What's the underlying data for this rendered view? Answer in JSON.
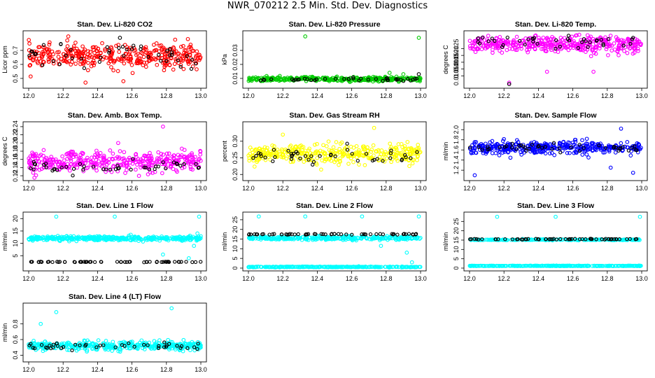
{
  "figure": {
    "title": "NWR_070212  2.5 Min. Std. Dev. Diagnostics"
  },
  "chart_data": [
    {
      "type": "scatter",
      "title": "Stan. Dev. Li-820 CO2",
      "ylabel": "Licor ppm",
      "xlim": [
        12.0,
        13.0
      ],
      "ylim": [
        0.45,
        0.82
      ],
      "xticks": [
        "12.0",
        "12.2",
        "12.4",
        "12.6",
        "12.8",
        "13.0"
      ],
      "yticks": [
        {
          "v": 0.5,
          "label": "0.5"
        },
        {
          "v": 0.6,
          "label": "0.6"
        },
        {
          "v": 0.7,
          "label": "0.7"
        }
      ],
      "series": [
        {
          "name": "main",
          "color": "#ff0000",
          "x_range": [
            12.0,
            13.0
          ],
          "center": 0.66,
          "spread": 0.07,
          "n": 380,
          "outliers": [
            [
              12.23,
              0.8
            ],
            [
              12.33,
              0.47
            ],
            [
              12.55,
              0.48
            ]
          ]
        },
        {
          "name": "reference",
          "color": "#000000",
          "x_range": [
            12.0,
            13.0
          ],
          "center": 0.66,
          "spread": 0.06,
          "n": 45,
          "outliers": [
            [
              12.53,
              0.79
            ]
          ]
        }
      ]
    },
    {
      "type": "scatter",
      "title": "Stan. Dev. Li-820 Pressure",
      "ylabel": "kPa",
      "xlim": [
        12.0,
        13.0
      ],
      "ylim": [
        0.005,
        0.042
      ],
      "xticks": [
        "12.0",
        "12.2",
        "12.4",
        "12.6",
        "12.8",
        "13.0"
      ],
      "yticks": [
        {
          "v": 0.01,
          "label": "0.01"
        },
        {
          "v": 0.02,
          "label": "0.02"
        },
        {
          "v": 0.03,
          "label": "0.03"
        }
      ],
      "series": [
        {
          "name": "main",
          "color": "#00cc00",
          "x_range": [
            12.0,
            13.0
          ],
          "center": 0.0095,
          "spread": 0.0012,
          "n": 380,
          "outliers": [
            [
              12.33,
              0.04
            ],
            [
              12.99,
              0.039
            ],
            [
              12.82,
              0.014
            ],
            [
              12.9,
              0.013
            ]
          ]
        },
        {
          "name": "reference",
          "color": "#000000",
          "x_range": [
            12.0,
            13.0
          ],
          "center": 0.0092,
          "spread": 0.001,
          "n": 40,
          "outliers": [
            [
              12.99,
              0.013
            ]
          ]
        }
      ]
    },
    {
      "type": "scatter",
      "title": "Stan. Dev. Li-820 Temp.",
      "ylabel": "degrees C",
      "xlim": [
        12.0,
        13.0
      ],
      "ylim": [
        0.0098,
        0.0136
      ],
      "xticks": [
        "12.0",
        "12.2",
        "12.4",
        "12.6",
        "12.8",
        "13.0"
      ],
      "yticks": [
        {
          "v": 0.0105,
          "label": "0.0105"
        },
        {
          "v": 0.011,
          "label": "0.0110"
        },
        {
          "v": 0.0115,
          "label": "0.0115"
        },
        {
          "v": 0.012,
          "label": "0.0120"
        },
        {
          "v": 0.0125,
          "label": "0.0125"
        }
      ],
      "series": [
        {
          "name": "main",
          "color": "#ff00ff",
          "x_range": [
            12.0,
            13.0
          ],
          "center": 0.0128,
          "spread": 0.0005,
          "n": 400,
          "outliers": [
            [
              12.23,
              0.01
            ],
            [
              12.45,
              0.0108
            ],
            [
              12.72,
              0.0108
            ]
          ]
        },
        {
          "name": "reference",
          "color": "#000000",
          "x_range": [
            12.0,
            13.0
          ],
          "center": 0.013,
          "spread": 0.0004,
          "n": 40,
          "outliers": [
            [
              12.23,
              0.0099
            ]
          ]
        }
      ]
    },
    {
      "type": "scatter",
      "title": "Stan. Dev. Amb. Box Temp.",
      "ylabel": "degrees C",
      "xlim": [
        12.0,
        13.0
      ],
      "ylim": [
        0.115,
        0.245
      ],
      "xticks": [
        "12.0",
        "12.2",
        "12.4",
        "12.6",
        "12.8",
        "13.0"
      ],
      "yticks": [
        {
          "v": 0.12,
          "label": "0.12"
        },
        {
          "v": 0.14,
          "label": "0.14"
        },
        {
          "v": 0.16,
          "label": "0.16"
        },
        {
          "v": 0.18,
          "label": "0.18"
        },
        {
          "v": 0.2,
          "label": "0.20"
        },
        {
          "v": 0.22,
          "label": "0.22"
        },
        {
          "v": 0.24,
          "label": "0.24"
        }
      ],
      "series": [
        {
          "name": "main",
          "color": "#ff00ff",
          "x_range": [
            12.0,
            13.0
          ],
          "center": 0.155,
          "spread": 0.02,
          "n": 380,
          "outliers": [
            [
              12.78,
              0.24
            ],
            [
              12.52,
              0.2
            ]
          ]
        },
        {
          "name": "reference",
          "color": "#000000",
          "x_range": [
            12.0,
            13.0
          ],
          "center": 0.14,
          "spread": 0.013,
          "n": 45,
          "outliers": []
        }
      ]
    },
    {
      "type": "scatter",
      "title": "Stan. Dev. Gas Stream RH",
      "ylabel": "percent",
      "xlim": [
        12.0,
        13.0
      ],
      "ylim": [
        0.19,
        0.35
      ],
      "xticks": [
        "12.0",
        "12.2",
        "12.4",
        "12.6",
        "12.8",
        "13.0"
      ],
      "yticks": [
        {
          "v": 0.2,
          "label": "0.20"
        },
        {
          "v": 0.25,
          "label": "0.25"
        },
        {
          "v": 0.3,
          "label": "0.30"
        }
      ],
      "series": [
        {
          "name": "main",
          "color": "#ffff00",
          "x_range": [
            12.0,
            13.0
          ],
          "center": 0.26,
          "spread": 0.025,
          "n": 380,
          "outliers": [
            [
              12.73,
              0.34
            ],
            [
              12.2,
              0.32
            ]
          ]
        },
        {
          "name": "reference",
          "color": "#000000",
          "x_range": [
            12.0,
            13.0
          ],
          "center": 0.255,
          "spread": 0.02,
          "n": 45,
          "outliers": []
        }
      ]
    },
    {
      "type": "scatter",
      "title": "Stan. Dev. Sample Flow",
      "ylabel": "ml/min",
      "xlim": [
        12.0,
        13.0
      ],
      "ylim": [
        1.05,
        2.1
      ],
      "xticks": [
        "12.0",
        "12.2",
        "12.4",
        "12.6",
        "12.8",
        "13.0"
      ],
      "yticks": [
        {
          "v": 1.2,
          "label": "1.2"
        },
        {
          "v": 1.4,
          "label": "1.4"
        },
        {
          "v": 1.6,
          "label": "1.6"
        },
        {
          "v": 1.8,
          "label": "1.8"
        },
        {
          "v": 2.0,
          "label": "2.0"
        }
      ],
      "series": [
        {
          "name": "main",
          "color": "#0000ff",
          "x_range": [
            12.0,
            13.0
          ],
          "center": 1.65,
          "spread": 0.1,
          "n": 380,
          "outliers": [
            [
              12.88,
              2.02
            ],
            [
              12.82,
              1.25
            ],
            [
              12.95,
              1.15
            ],
            [
              12.03,
              1.1
            ]
          ]
        },
        {
          "name": "reference",
          "color": "#000000",
          "x_range": [
            12.0,
            13.0
          ],
          "center": 1.65,
          "spread": 0.08,
          "n": 45,
          "outliers": []
        }
      ]
    },
    {
      "type": "scatter",
      "title": "Stan. Dev. Line 1 Flow",
      "ylabel": "ml/min",
      "xlim": [
        12.0,
        13.0
      ],
      "ylim": [
        0.0,
        21.5
      ],
      "xticks": [
        "12.0",
        "12.2",
        "12.4",
        "12.6",
        "12.8",
        "13.0"
      ],
      "yticks": [
        {
          "v": 5,
          "label": "5"
        },
        {
          "v": 10,
          "label": "10"
        },
        {
          "v": 15,
          "label": "15"
        },
        {
          "v": 20,
          "label": "20"
        }
      ],
      "series": [
        {
          "name": "main",
          "color": "#00ffff",
          "x_range": [
            12.0,
            13.0
          ],
          "center": 12.0,
          "spread": 0.7,
          "n": 380,
          "outliers": [
            [
              12.16,
              20.8
            ],
            [
              12.5,
              20.8
            ],
            [
              12.99,
              20.8
            ],
            [
              12.78,
              5.5
            ],
            [
              12.93,
              4.0
            ],
            [
              12.96,
              9.0
            ],
            [
              12.98,
              14.0
            ]
          ]
        },
        {
          "name": "reference",
          "color": "#000000",
          "x_range": [
            12.0,
            13.0
          ],
          "center": 2.5,
          "spread": 0.1,
          "n": 60,
          "outliers": []
        }
      ]
    },
    {
      "type": "scatter",
      "title": "Stan. Dev. Line 2 Flow",
      "ylabel": "ml/min",
      "xlim": [
        12.0,
        13.0
      ],
      "ylim": [
        0.0,
        27.5
      ],
      "xticks": [
        "12.0",
        "12.2",
        "12.4",
        "12.6",
        "12.8",
        "13.0"
      ],
      "yticks": [
        {
          "v": 0,
          "label": "0"
        },
        {
          "v": 5,
          "label": "5"
        },
        {
          "v": 10,
          "label": "10"
        },
        {
          "v": 15,
          "label": "15"
        },
        {
          "v": 20,
          "label": "20"
        },
        {
          "v": 25,
          "label": "25"
        }
      ],
      "series": [
        {
          "name": "main",
          "color": "#00ffff",
          "x_range": [
            12.0,
            13.0
          ],
          "center": 15.5,
          "spread": 0.8,
          "n": 300,
          "outliers": [
            [
              12.06,
              26.7
            ],
            [
              12.33,
              26.7
            ],
            [
              12.66,
              26.7
            ],
            [
              12.99,
              26.7
            ],
            [
              12.77,
              11.5
            ],
            [
              12.92,
              8.0
            ],
            [
              12.95,
              3.0
            ]
          ]
        },
        {
          "name": "baseline",
          "color": "#00ffff",
          "x_range": [
            12.0,
            13.0
          ],
          "center": 0.6,
          "spread": 0.15,
          "n": 300,
          "outliers": []
        },
        {
          "name": "reference",
          "color": "#000000",
          "x_range": [
            12.0,
            13.0
          ],
          "center": 17.5,
          "spread": 0.2,
          "n": 60,
          "outliers": []
        }
      ]
    },
    {
      "type": "scatter",
      "title": "Stan. Dev. Line 3 Flow",
      "ylabel": "ml/min",
      "xlim": [
        12.0,
        13.0
      ],
      "ylim": [
        0.0,
        28.5
      ],
      "xticks": [
        "12.0",
        "12.2",
        "12.4",
        "12.6",
        "12.8",
        "13.0"
      ],
      "yticks": [
        {
          "v": 0,
          "label": "0"
        },
        {
          "v": 5,
          "label": "5"
        },
        {
          "v": 10,
          "label": "10"
        },
        {
          "v": 15,
          "label": "15"
        },
        {
          "v": 20,
          "label": "20"
        },
        {
          "v": 25,
          "label": "25"
        }
      ],
      "series": [
        {
          "name": "main",
          "color": "#00ffff",
          "x_range": [
            12.0,
            13.0
          ],
          "center": 15.2,
          "spread": 0.2,
          "n": 250,
          "outliers": [
            [
              12.16,
              27.5
            ],
            [
              12.5,
              27.5
            ],
            [
              12.99,
              27.5
            ]
          ]
        },
        {
          "name": "baseline",
          "color": "#00ffff",
          "x_range": [
            12.0,
            13.0
          ],
          "center": 1.2,
          "spread": 0.1,
          "n": 300,
          "outliers": []
        },
        {
          "name": "reference",
          "color": "#000000",
          "x_range": [
            12.0,
            13.0
          ],
          "center": 15.5,
          "spread": 0.15,
          "n": 60,
          "outliers": []
        }
      ]
    },
    {
      "type": "scatter",
      "title": "Stan. Dev. Line 4 (LT) Flow",
      "ylabel": "ml/min",
      "xlim": [
        12.0,
        13.0
      ],
      "ylim": [
        0.35,
        1.03
      ],
      "xticks": [
        "12.0",
        "12.2",
        "12.4",
        "12.6",
        "12.8",
        "13.0"
      ],
      "yticks": [
        {
          "v": 0.4,
          "label": "0.4"
        },
        {
          "v": 0.6,
          "label": "0.6"
        },
        {
          "v": 0.8,
          "label": "0.8"
        }
      ],
      "series": [
        {
          "name": "main",
          "color": "#00ffff",
          "x_range": [
            12.0,
            13.0
          ],
          "center": 0.52,
          "spread": 0.045,
          "n": 400,
          "outliers": [
            [
              12.16,
              0.95
            ],
            [
              12.83,
              1.0
            ],
            [
              12.07,
              0.8
            ]
          ]
        },
        {
          "name": "reference",
          "color": "#000000",
          "x_range": [
            12.0,
            13.0
          ],
          "center": 0.52,
          "spread": 0.04,
          "n": 45,
          "outliers": []
        }
      ]
    }
  ]
}
